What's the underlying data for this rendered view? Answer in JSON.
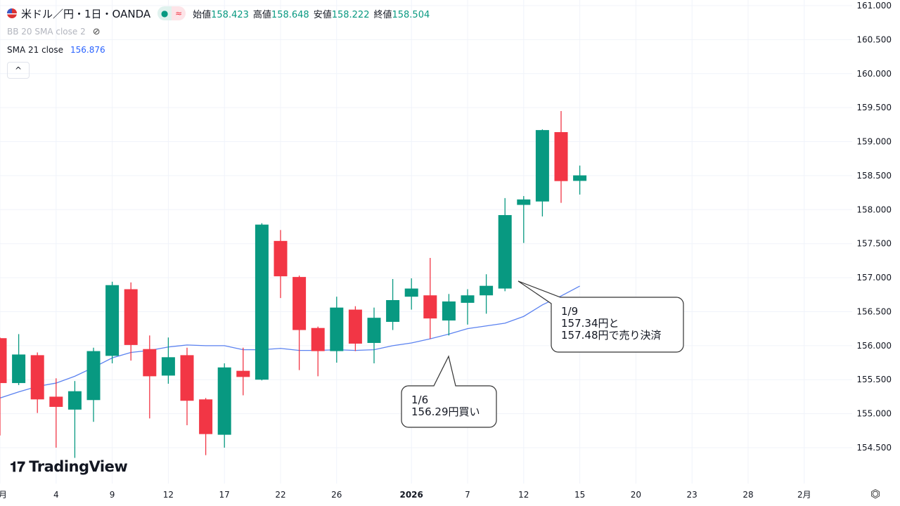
{
  "header": {
    "symbol_title": "米ドル／円・1日・OANDA",
    "market_status_icon": "market-open-dot",
    "delay_icon": "approx-wave",
    "ohlc": [
      {
        "label": "始値",
        "value": "158.423"
      },
      {
        "label": "高値",
        "value": "158.648"
      },
      {
        "label": "安値",
        "value": "158.222"
      },
      {
        "label": "終値",
        "value": "158.504"
      }
    ]
  },
  "indicators": [
    {
      "name": "BB 20 SMA close 2",
      "hidden": true
    },
    {
      "name": "SMA 21 close",
      "value": "156.876"
    }
  ],
  "collapse_label": "^",
  "branding": "TradingView",
  "colors": {
    "up": "#089981",
    "down": "#f23645",
    "sma": "#5b82f0",
    "grid": "#f0f3fa"
  },
  "chart_data": {
    "type": "candlestick",
    "title": "米ドル／円・1日・OANDA",
    "ylim": [
      154.3,
      161.05
    ],
    "y_ticks": [
      "161.000",
      "160.500",
      "160.000",
      "159.500",
      "159.000",
      "158.500",
      "158.000",
      "157.500",
      "157.000",
      "156.500",
      "156.000",
      "155.500",
      "155.000",
      "154.500"
    ],
    "x_ticks": [
      {
        "label": "月",
        "index": 0
      },
      {
        "label": "4",
        "index": 3
      },
      {
        "label": "9",
        "index": 6
      },
      {
        "label": "12",
        "index": 9
      },
      {
        "label": "17",
        "index": 12
      },
      {
        "label": "22",
        "index": 15
      },
      {
        "label": "26",
        "index": 18
      },
      {
        "label": "2026",
        "index": 22
      },
      {
        "label": "7",
        "index": 25
      },
      {
        "label": "12",
        "index": 28
      },
      {
        "label": "15",
        "index": 31
      },
      {
        "label": "20",
        "index": 34
      },
      {
        "label": "23",
        "index": 37
      },
      {
        "label": "28",
        "index": 40
      },
      {
        "label": "2月",
        "index": 43
      }
    ],
    "candles": [
      [
        156.11,
        155.45,
        156.12,
        154.68
      ],
      [
        155.45,
        155.87,
        156.17,
        155.42
      ],
      [
        155.86,
        155.21,
        155.9,
        155.01
      ],
      [
        155.25,
        155.1,
        155.52,
        154.5
      ],
      [
        155.06,
        155.33,
        155.48,
        154.35
      ],
      [
        155.2,
        155.92,
        155.97,
        154.88
      ],
      [
        155.85,
        156.89,
        156.94,
        155.74
      ],
      [
        156.83,
        156.01,
        156.93,
        155.78
      ],
      [
        155.95,
        155.55,
        156.15,
        154.93
      ],
      [
        155.56,
        155.83,
        156.12,
        155.44
      ],
      [
        155.86,
        155.19,
        155.97,
        154.83
      ],
      [
        155.21,
        154.7,
        155.23,
        154.39
      ],
      [
        154.69,
        155.68,
        155.74,
        154.5
      ],
      [
        155.63,
        155.54,
        155.97,
        155.27
      ],
      [
        155.5,
        157.78,
        157.8,
        155.49
      ],
      [
        157.54,
        157.02,
        157.7,
        156.7
      ],
      [
        157.01,
        156.23,
        157.03,
        155.64
      ],
      [
        156.26,
        155.92,
        156.28,
        155.55
      ],
      [
        155.92,
        156.56,
        156.72,
        155.75
      ],
      [
        156.53,
        156.03,
        156.58,
        155.92
      ],
      [
        156.04,
        156.41,
        156.56,
        155.74
      ],
      [
        156.35,
        156.67,
        156.98,
        156.23
      ],
      [
        156.72,
        156.84,
        156.99,
        156.53
      ],
      [
        156.74,
        156.4,
        157.29,
        156.1
      ],
      [
        156.37,
        156.65,
        156.76,
        156.15
      ],
      [
        156.63,
        156.74,
        156.83,
        156.31
      ],
      [
        156.74,
        156.88,
        157.05,
        156.47
      ],
      [
        156.84,
        157.92,
        158.17,
        156.8
      ],
      [
        158.07,
        158.15,
        158.2,
        157.51
      ],
      [
        158.12,
        159.17,
        159.18,
        157.9
      ],
      [
        159.14,
        158.42,
        159.45,
        158.1
      ],
      [
        158.423,
        158.504,
        158.648,
        158.222
      ]
    ],
    "candle_format": [
      "open",
      "close",
      "high",
      "low"
    ],
    "sma21": [
      155.23,
      155.32,
      155.4,
      155.45,
      155.55,
      155.68,
      155.82,
      155.9,
      155.93,
      155.98,
      156.01,
      156.0,
      156.0,
      155.94,
      155.94,
      155.96,
      155.93,
      155.93,
      155.94,
      155.93,
      155.94,
      156.0,
      156.04,
      156.1,
      156.17,
      156.25,
      156.29,
      156.33,
      156.43,
      156.6,
      156.73,
      156.876
    ],
    "annotations": [
      {
        "lines": [
          "1/6",
          "156.29円買い"
        ],
        "anchor_index": 24,
        "anchor_price": 156.0
      },
      {
        "lines": [
          "1/9",
          "157.34円と",
          "157.48円で売り決済"
        ],
        "anchor_index": 27,
        "anchor_price": 156.84
      }
    ]
  }
}
